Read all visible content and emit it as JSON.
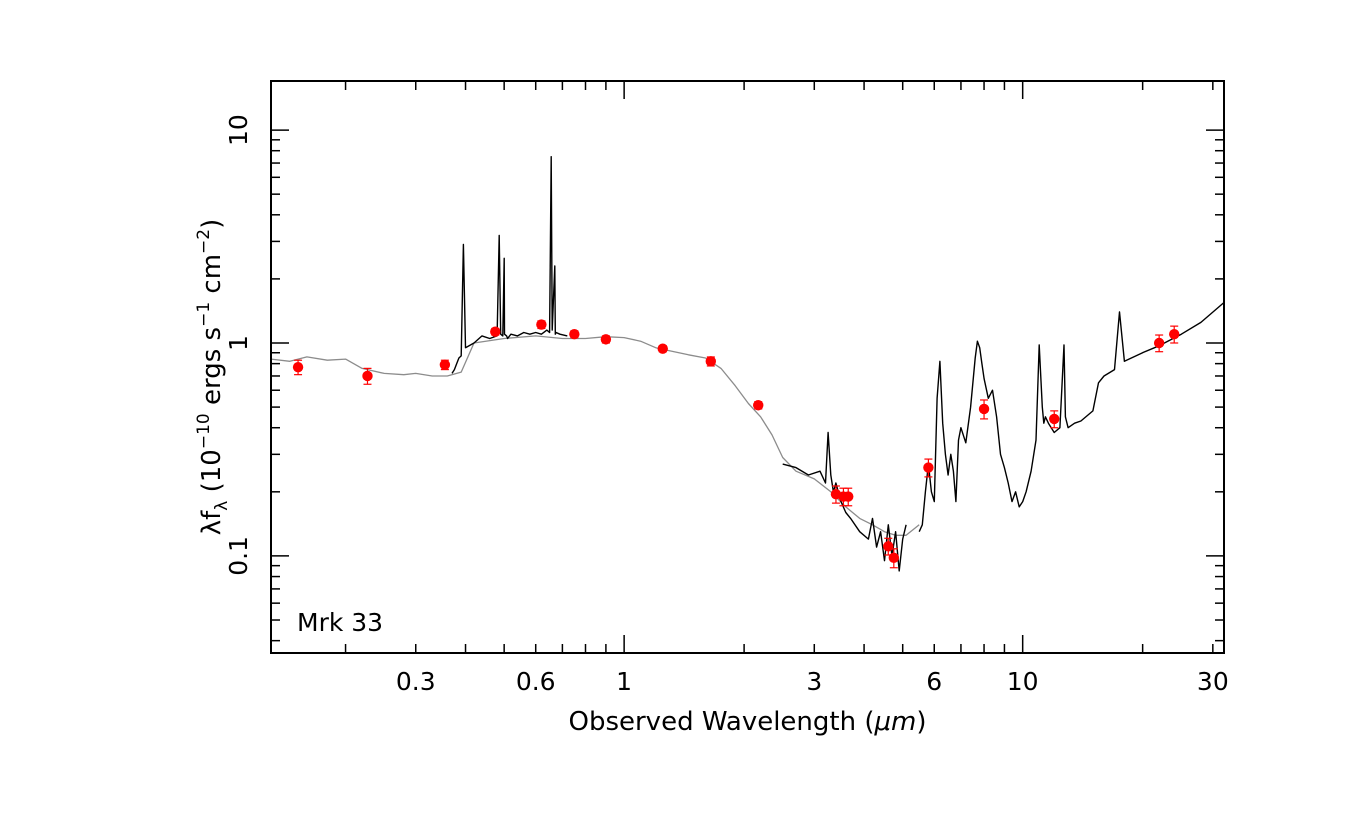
{
  "chart_data": {
    "type": "line",
    "x_scale": "log",
    "y_scale": "log",
    "xlim": [
      0.13,
      32
    ],
    "ylim": [
      0.035,
      17
    ],
    "xlabel": {
      "prefix": "Observed Wavelength (",
      "unit": "μm",
      "suffix": ")"
    },
    "ylabel": {
      "lambda": "λ",
      "f": "f",
      "sub": "λ",
      "open": " (10",
      "exp1": "−10",
      "mid": " ergs s",
      "exp2": "−1",
      "mid2": " cm",
      "exp3": "−2",
      "close": ")"
    },
    "x_ticks": [
      "0.3",
      "0.6",
      "1",
      "3",
      "6",
      "10",
      "30"
    ],
    "x_tick_values": [
      0.3,
      0.6,
      1,
      3,
      6,
      10,
      30
    ],
    "y_ticks": [
      "0.1",
      "1",
      "10"
    ],
    "y_tick_values": [
      0.1,
      1,
      10
    ],
    "annotation": "Mrk 33",
    "colors": {
      "model": "#8c8c8c",
      "spectrum": "#000000",
      "photometry": "#ff0000"
    },
    "series": [
      {
        "style": "model",
        "x": [
          0.13,
          0.145,
          0.16,
          0.18,
          0.2,
          0.22,
          0.25,
          0.28,
          0.3,
          0.33,
          0.36,
          0.39,
          0.42,
          0.5,
          0.6,
          0.7,
          0.8,
          0.9,
          1.0,
          1.1,
          1.2,
          1.3,
          1.45,
          1.6,
          1.75,
          1.9,
          2.05,
          2.2,
          2.35,
          2.5,
          2.7,
          3.0,
          3.3,
          3.6,
          3.9,
          4.2,
          4.5,
          4.8,
          5.1,
          5.5
        ],
        "y": [
          0.84,
          0.82,
          0.86,
          0.83,
          0.84,
          0.76,
          0.72,
          0.71,
          0.72,
          0.7,
          0.7,
          0.73,
          1.0,
          1.05,
          1.08,
          1.05,
          1.05,
          1.07,
          1.06,
          1.02,
          0.95,
          0.92,
          0.88,
          0.85,
          0.76,
          0.63,
          0.52,
          0.45,
          0.37,
          0.29,
          0.25,
          0.23,
          0.2,
          0.17,
          0.15,
          0.14,
          0.13,
          0.125,
          0.125,
          0.14
        ]
      },
      {
        "style": "spectrum",
        "x": [
          0.37,
          0.375,
          0.38,
          0.385,
          0.39,
          0.395,
          0.4,
          0.42,
          0.44,
          0.46,
          0.48,
          0.486,
          0.49,
          0.496,
          0.5,
          0.501,
          0.507,
          0.51,
          0.52,
          0.54,
          0.56,
          0.58,
          0.6,
          0.62,
          0.64,
          0.65,
          0.656,
          0.66,
          0.67,
          0.672,
          0.675,
          0.69,
          0.72
        ],
        "y": [
          0.72,
          0.75,
          0.8,
          0.85,
          0.87,
          2.9,
          0.95,
          1.0,
          1.08,
          1.05,
          1.08,
          3.2,
          1.1,
          1.08,
          2.5,
          1.1,
          1.08,
          1.05,
          1.1,
          1.08,
          1.12,
          1.1,
          1.12,
          1.1,
          1.15,
          1.12,
          7.5,
          1.15,
          2.3,
          1.1,
          1.12,
          1.1,
          1.08
        ]
      },
      {
        "style": "spectrum",
        "x": [
          2.5,
          2.7,
          2.9,
          3.1,
          3.2,
          3.25,
          3.3,
          3.35,
          3.4,
          3.5,
          3.6,
          3.7,
          3.9,
          4.1,
          4.2,
          4.3,
          4.4,
          4.5,
          4.6,
          4.7,
          4.8,
          4.9,
          5.0,
          5.1
        ],
        "y": [
          0.27,
          0.26,
          0.24,
          0.25,
          0.22,
          0.38,
          0.24,
          0.2,
          0.22,
          0.18,
          0.16,
          0.15,
          0.13,
          0.12,
          0.15,
          0.11,
          0.13,
          0.095,
          0.14,
          0.1,
          0.13,
          0.085,
          0.12,
          0.14
        ]
      },
      {
        "style": "spectrum",
        "x": [
          5.5,
          5.6,
          5.7,
          5.8,
          5.9,
          6.0,
          6.1,
          6.2,
          6.3,
          6.4,
          6.5,
          6.6,
          6.7,
          6.8,
          6.9,
          7.0,
          7.2,
          7.4,
          7.6,
          7.7,
          7.8,
          7.9,
          8.0,
          8.2,
          8.4,
          8.6,
          8.8,
          9.0,
          9.2,
          9.4,
          9.6,
          9.8,
          10.0,
          10.2,
          10.5,
          10.8,
          11.0,
          11.2,
          11.3,
          11.4,
          11.6,
          12.0,
          12.4,
          12.7,
          12.8,
          13.0,
          13.5,
          14.0,
          15.0,
          15.5,
          16.0,
          17.0,
          17.5,
          18.0,
          20.0,
          22.0,
          25.0,
          28.0,
          32.0
        ],
        "y": [
          0.13,
          0.14,
          0.2,
          0.27,
          0.2,
          0.18,
          0.55,
          0.82,
          0.42,
          0.3,
          0.24,
          0.3,
          0.25,
          0.18,
          0.35,
          0.4,
          0.34,
          0.5,
          0.85,
          1.02,
          0.95,
          0.8,
          0.68,
          0.55,
          0.6,
          0.45,
          0.3,
          0.26,
          0.22,
          0.18,
          0.2,
          0.17,
          0.18,
          0.2,
          0.25,
          0.35,
          0.98,
          0.5,
          0.42,
          0.45,
          0.42,
          0.38,
          0.4,
          0.98,
          0.45,
          0.4,
          0.42,
          0.43,
          0.48,
          0.65,
          0.7,
          0.75,
          1.4,
          0.82,
          0.9,
          0.97,
          1.1,
          1.25,
          1.55
        ]
      }
    ],
    "photometry": {
      "x": [
        0.152,
        0.227,
        0.355,
        0.475,
        0.62,
        0.75,
        0.9,
        1.25,
        1.65,
        2.17,
        3.4,
        3.55,
        3.65,
        4.6,
        4.75,
        5.8,
        8.0,
        12.0,
        22.0,
        24.0
      ],
      "y": [
        0.77,
        0.7,
        0.79,
        1.13,
        1.22,
        1.1,
        1.04,
        0.94,
        0.82,
        0.51,
        0.195,
        0.19,
        0.19,
        0.111,
        0.098,
        0.26,
        0.49,
        0.44,
        1.0,
        1.1
      ],
      "err": [
        0.06,
        0.06,
        0.04,
        0.04,
        0.05,
        0.04,
        0.04,
        0.03,
        0.04,
        0.02,
        0.018,
        0.018,
        0.018,
        0.01,
        0.01,
        0.025,
        0.05,
        0.04,
        0.09,
        0.1
      ]
    }
  }
}
